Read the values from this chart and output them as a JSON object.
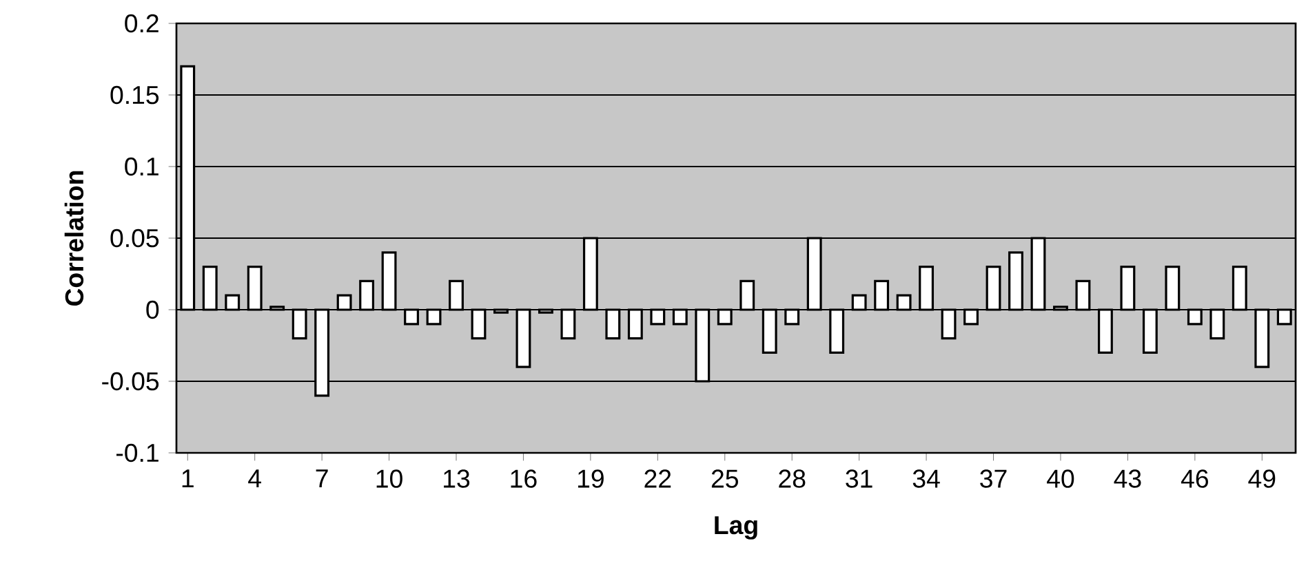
{
  "chart_data": {
    "type": "bar",
    "xlabel": "Lag",
    "ylabel": "Correlation",
    "categories": [
      "1",
      null,
      null,
      "4",
      null,
      null,
      "7",
      null,
      null,
      "10",
      null,
      null,
      "13",
      null,
      null,
      "16",
      null,
      null,
      "19",
      null,
      null,
      "22",
      null,
      null,
      "25",
      null,
      null,
      "28",
      null,
      null,
      "31",
      null,
      null,
      "34",
      null,
      null,
      "37",
      null,
      null,
      "40",
      null,
      null,
      "43",
      null,
      null,
      "46",
      null,
      null,
      "49",
      null
    ],
    "values": [
      0.17,
      0.03,
      0.01,
      0.03,
      0.002,
      -0.02,
      -0.06,
      0.01,
      0.02,
      0.04,
      -0.01,
      -0.01,
      0.02,
      -0.02,
      -0.002,
      -0.04,
      -0.002,
      -0.02,
      0.05,
      -0.02,
      -0.02,
      -0.01,
      -0.01,
      -0.05,
      -0.01,
      0.02,
      -0.03,
      -0.01,
      0.05,
      -0.03,
      0.01,
      0.02,
      0.01,
      0.03,
      -0.02,
      -0.01,
      0.03,
      0.04,
      0.05,
      0.002,
      0.02,
      -0.03,
      0.03,
      -0.03,
      0.03,
      -0.01,
      -0.02,
      0.03,
      -0.04,
      -0.01
    ],
    "color": "#ffffff",
    "ylim": [
      -0.1,
      0.2
    ],
    "yticks": [
      -0.1,
      -0.05,
      0,
      0.05,
      0.1,
      0.15,
      0.2
    ],
    "grid": "y"
  }
}
